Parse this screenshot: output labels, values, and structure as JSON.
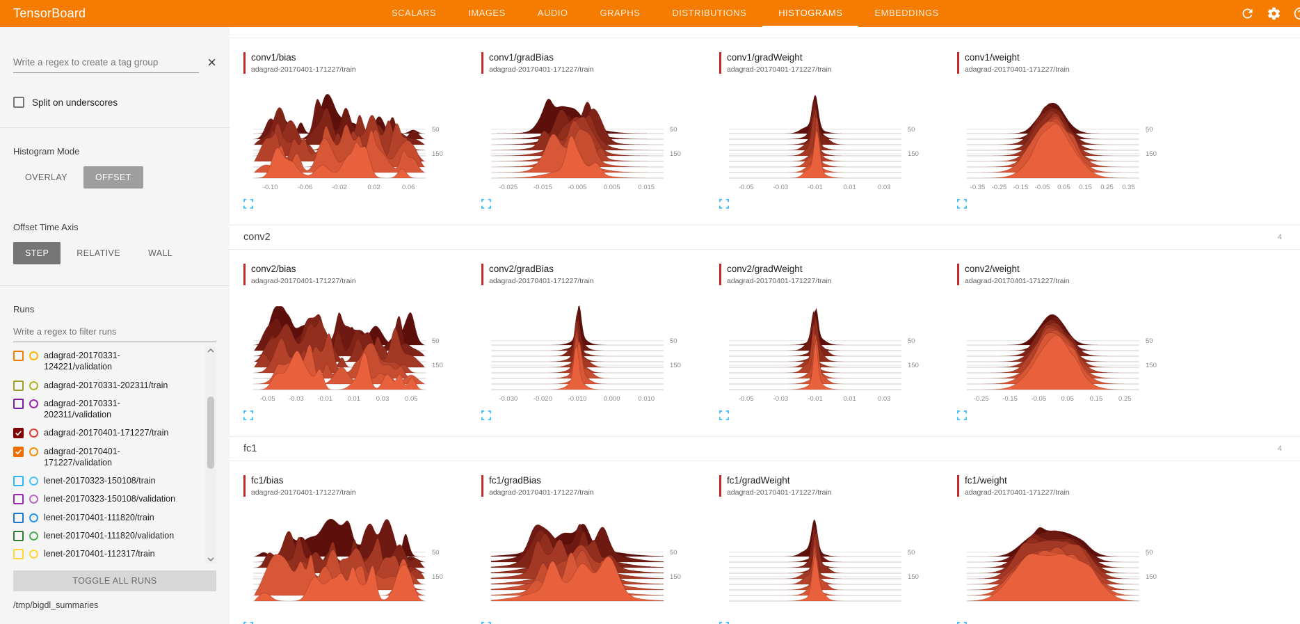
{
  "colors": {
    "topbar_orange": "#f57c00",
    "accent_red": "#c62828",
    "expand_blue": "#29b6f6",
    "btn_selected": "#9e9e9e",
    "btn_selected_dark": "#757575",
    "ridge_back": "#5c0f0b",
    "ridge_front": "#e9613c",
    "ridge_stroke": "rgba(70,8,4,0.30)"
  },
  "topbar": {
    "title": "TensorBoard",
    "tabs": [
      {
        "label": "SCALARS",
        "active": false
      },
      {
        "label": "IMAGES",
        "active": false
      },
      {
        "label": "AUDIO",
        "active": false
      },
      {
        "label": "GRAPHS",
        "active": false
      },
      {
        "label": "DISTRIBUTIONS",
        "active": false
      },
      {
        "label": "HISTOGRAMS",
        "active": true
      },
      {
        "label": "EMBEDDINGS",
        "active": false
      }
    ],
    "icons": [
      "refresh-icon",
      "settings-icon",
      "help-icon"
    ]
  },
  "sidebar": {
    "tag_input_placeholder": "Write a regex to create a tag group",
    "split_checkbox_label": "Split on underscores",
    "split_checkbox_checked": false,
    "histogram_mode_label": "Histogram Mode",
    "histogram_mode_options": [
      {
        "label": "OVERLAY",
        "selected": false
      },
      {
        "label": "OFFSET",
        "selected": true
      }
    ],
    "offset_axis_label": "Offset Time Axis",
    "offset_axis_options": [
      {
        "label": "STEP",
        "selected": true
      },
      {
        "label": "RELATIVE",
        "selected": false
      },
      {
        "label": "WALL",
        "selected": false
      }
    ],
    "runs_label": "Runs",
    "runs_filter_placeholder": "Write a regex to filter runs",
    "runs": [
      {
        "label": "adagrad-20170331-124221/validation",
        "checked": false,
        "checkbox_color": "#f57c00",
        "circle_color": "#ffb300"
      },
      {
        "label": "adagrad-20170331-202311/train",
        "checked": false,
        "checkbox_color": "#9e9d24",
        "circle_color": "#afb42b"
      },
      {
        "label": "adagrad-20170331-202311/validation",
        "checked": false,
        "checkbox_color": "#7b1fa2",
        "circle_color": "#9c27b0"
      },
      {
        "label": "adagrad-20170401-171227/train",
        "checked": true,
        "checkbox_color": "#7f0000",
        "circle_color": "#e53935"
      },
      {
        "label": "adagrad-20170401-171227/validation",
        "checked": true,
        "checkbox_color": "#ef6c00",
        "circle_color": "#fb8c00"
      },
      {
        "label": "lenet-20170323-150108/train",
        "checked": false,
        "checkbox_color": "#29b6f6",
        "circle_color": "#4fc3f7"
      },
      {
        "label": "lenet-20170323-150108/validation",
        "checked": false,
        "checkbox_color": "#9c27b0",
        "circle_color": "#ba68c8"
      },
      {
        "label": "lenet-20170401-111820/train",
        "checked": false,
        "checkbox_color": "#1976d2",
        "circle_color": "#2196f3"
      },
      {
        "label": "lenet-20170401-111820/validation",
        "checked": false,
        "checkbox_color": "#2e7d32",
        "circle_color": "#4caf50"
      },
      {
        "label": "lenet-20170401-112317/train",
        "checked": false,
        "checkbox_color": "#fdd835",
        "circle_color": "#fdd835"
      }
    ],
    "toggle_all_label": "TOGGLE ALL RUNS",
    "log_dir": "/tmp/bigdl_summaries"
  },
  "main": {
    "sections": [
      {
        "name": "conv1",
        "header_visible": false,
        "count": "4",
        "cards": [
          {
            "title": "conv1/bias",
            "run": "adagrad-20170401-171227/train",
            "type": "histogram-ridgeline",
            "shape": "jagged",
            "seed": 11,
            "xticks": [
              "-0.10",
              "-0.06",
              "-0.02",
              "0.02",
              "0.06"
            ],
            "yticks": [
              "50",
              "150"
            ]
          },
          {
            "title": "conv1/gradBias",
            "run": "adagrad-20170401-171227/train",
            "type": "histogram-ridgeline",
            "shape": "bumpy",
            "seed": 23,
            "xticks": [
              "-0.025",
              "-0.015",
              "-0.005",
              "0.005",
              "0.015"
            ],
            "yticks": [
              "50",
              "150"
            ]
          },
          {
            "title": "conv1/gradWeight",
            "run": "adagrad-20170401-171227/train",
            "type": "histogram-ridgeline",
            "shape": "spike",
            "seed": 37,
            "xticks": [
              "-0.05",
              "-0.03",
              "-0.01",
              "0.01",
              "0.03"
            ],
            "yticks": [
              "50",
              "150"
            ]
          },
          {
            "title": "conv1/weight",
            "run": "adagrad-20170401-171227/train",
            "type": "histogram-ridgeline",
            "shape": "bell",
            "seed": 41,
            "xticks": [
              "-0.35",
              "-0.25",
              "-0.15",
              "-0.05",
              "0.05",
              "0.15",
              "0.25",
              "0.35"
            ],
            "yticks": [
              "50",
              "150"
            ]
          }
        ]
      },
      {
        "name": "conv2",
        "header_visible": true,
        "count": "4",
        "cards": [
          {
            "title": "conv2/bias",
            "run": "adagrad-20170401-171227/train",
            "type": "histogram-ridgeline",
            "shape": "jagged",
            "seed": 53,
            "xticks": [
              "-0.05",
              "-0.03",
              "-0.01",
              "0.01",
              "0.03",
              "0.05"
            ],
            "yticks": [
              "50",
              "150"
            ]
          },
          {
            "title": "conv2/gradBias",
            "run": "adagrad-20170401-171227/train",
            "type": "histogram-ridgeline",
            "shape": "spike",
            "seed": 67,
            "xticks": [
              "-0.030",
              "-0.020",
              "-0.010",
              "0.000",
              "0.010"
            ],
            "yticks": [
              "50",
              "150"
            ]
          },
          {
            "title": "conv2/gradWeight",
            "run": "adagrad-20170401-171227/train",
            "type": "histogram-ridgeline",
            "shape": "spike",
            "seed": 71,
            "xticks": [
              "-0.05",
              "-0.03",
              "-0.01",
              "0.01",
              "0.03"
            ],
            "yticks": [
              "50",
              "150"
            ]
          },
          {
            "title": "conv2/weight",
            "run": "adagrad-20170401-171227/train",
            "type": "histogram-ridgeline",
            "shape": "bell",
            "seed": 83,
            "xticks": [
              "-0.25",
              "-0.15",
              "-0.05",
              "0.05",
              "0.15",
              "0.25"
            ],
            "yticks": [
              "50",
              "150"
            ]
          }
        ]
      },
      {
        "name": "fc1",
        "header_visible": true,
        "count": "4",
        "cards": [
          {
            "title": "fc1/bias",
            "run": "adagrad-20170401-171227/train",
            "type": "histogram-ridgeline",
            "shape": "jagged",
            "seed": 97,
            "xticks": [],
            "yticks": [
              "50",
              "150"
            ]
          },
          {
            "title": "fc1/gradBias",
            "run": "adagrad-20170401-171227/train",
            "type": "histogram-ridgeline",
            "shape": "bumpy_wide",
            "seed": 101,
            "xticks": [],
            "yticks": [
              "50",
              "150"
            ]
          },
          {
            "title": "fc1/gradWeight",
            "run": "adagrad-20170401-171227/train",
            "type": "histogram-ridgeline",
            "shape": "spike",
            "seed": 103,
            "xticks": [],
            "yticks": [
              "50",
              "150"
            ]
          },
          {
            "title": "fc1/weight",
            "run": "adagrad-20170401-171227/train",
            "type": "histogram-ridgeline",
            "shape": "widebell",
            "seed": 107,
            "xticks": [],
            "yticks": [
              "50",
              "150"
            ]
          }
        ]
      }
    ]
  }
}
